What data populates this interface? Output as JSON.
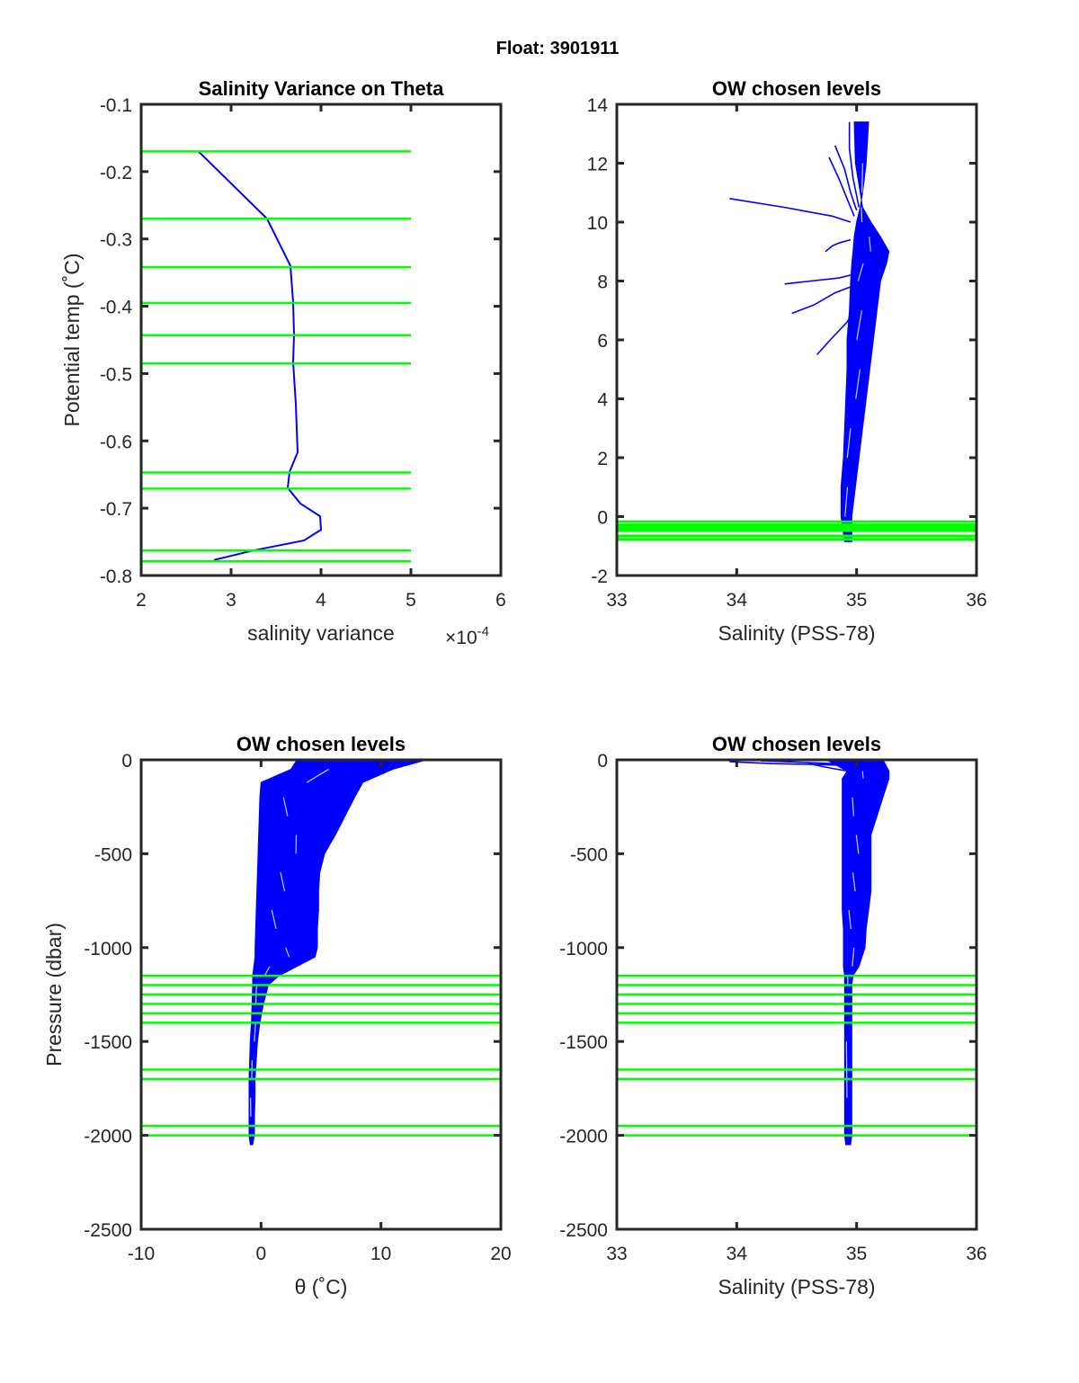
{
  "figure": {
    "suptitle": "Float: 3901911",
    "colors": {
      "profile": "#0000ff",
      "level": "#00ff00",
      "axis": "#262626"
    }
  },
  "chart_data": [
    {
      "id": "variance",
      "type": "line",
      "title": "Salinity Variance on Theta",
      "xlabel": "salinity variance",
      "xexponent": "×10",
      "xexponent_power": "-4",
      "ylabel": "Potential temp (˚C)",
      "xlim": [
        2,
        6
      ],
      "ylim": [
        -0.8,
        -0.1
      ],
      "xticks": [
        2,
        3,
        4,
        5,
        6
      ],
      "xtick_labels": [
        "2",
        "3",
        "4",
        "5",
        "6"
      ],
      "yticks": [
        -0.1,
        -0.2,
        -0.3,
        -0.4,
        -0.5,
        -0.6,
        -0.7,
        -0.8
      ],
      "ytick_labels": [
        "-0.1",
        "-0.2",
        "-0.3",
        "-0.4",
        "-0.5",
        "-0.6",
        "-0.7",
        "-0.8"
      ],
      "series": [
        {
          "name": "salinity variance",
          "x_scaled_1e-4": [
            2.63,
            3.4,
            3.66,
            3.69,
            3.7,
            3.69,
            3.72,
            3.74,
            3.65,
            3.63,
            3.77,
            3.99,
            4.0,
            3.81,
            3.24,
            2.81
          ],
          "y": [
            -0.169,
            -0.27,
            -0.34,
            -0.394,
            -0.442,
            -0.483,
            -0.546,
            -0.617,
            -0.646,
            -0.67,
            -0.693,
            -0.712,
            -0.732,
            -0.748,
            -0.763,
            -0.777
          ]
        }
      ],
      "chosen_levels": [
        -0.17,
        -0.27,
        -0.342,
        -0.395,
        -0.443,
        -0.485,
        -0.647,
        -0.671,
        -0.763,
        -0.779
      ],
      "level_xrange": [
        2,
        5
      ]
    },
    {
      "id": "theta-salinity",
      "type": "line",
      "title": "OW chosen levels",
      "xlabel": "Salinity (PSS-78)",
      "ylabel": "",
      "xlim": [
        33,
        36
      ],
      "ylim": [
        -2,
        14
      ],
      "xticks": [
        33,
        34,
        35,
        36
      ],
      "xtick_labels": [
        "33",
        "34",
        "35",
        "36"
      ],
      "yticks": [
        14,
        12,
        10,
        8,
        6,
        4,
        2,
        0,
        -2
      ],
      "ytick_labels": [
        "14",
        "12",
        "10",
        "8",
        "6",
        "4",
        "2",
        "0",
        "-2"
      ],
      "envelope": {
        "y": [
          -0.85,
          0,
          1,
          2,
          3,
          4,
          5,
          6,
          7,
          8,
          8.6,
          9.0,
          9.5,
          10,
          10.5,
          11,
          12,
          13.4
        ],
        "x_left": [
          34.9,
          34.87,
          34.87,
          34.89,
          34.9,
          34.91,
          34.92,
          34.92,
          34.94,
          34.95,
          34.96,
          34.97,
          34.98,
          35.0,
          35.03,
          35.05,
          35.08,
          35.1
        ],
        "x_right": [
          34.96,
          34.96,
          34.99,
          35.02,
          35.05,
          35.08,
          35.11,
          35.14,
          35.17,
          35.2,
          35.25,
          35.27,
          35.2,
          35.12,
          35.05,
          35.03,
          34.99,
          34.98
        ]
      },
      "outlier_traces": [
        {
          "x": [
            33.94,
            34.4,
            34.8,
            34.95
          ],
          "y": [
            10.8,
            10.5,
            10.2,
            10.0
          ]
        },
        {
          "x": [
            34.4,
            34.62,
            34.85,
            34.95
          ],
          "y": [
            7.9,
            8.0,
            8.1,
            8.2
          ]
        },
        {
          "x": [
            34.46,
            34.65,
            34.82,
            34.95
          ],
          "y": [
            6.9,
            7.2,
            7.6,
            7.8
          ]
        },
        {
          "x": [
            34.67,
            34.78,
            34.92,
            34.98
          ],
          "y": [
            5.5,
            6.0,
            6.6,
            7.0
          ]
        },
        {
          "x": [
            34.77,
            34.85,
            34.92,
            34.98
          ],
          "y": [
            12.2,
            11.5,
            10.8,
            10.2
          ]
        },
        {
          "x": [
            34.82,
            34.9,
            34.95,
            35.0
          ],
          "y": [
            12.6,
            11.8,
            11.0,
            10.4
          ]
        },
        {
          "x": [
            34.94,
            34.94,
            34.97,
            35.02
          ],
          "y": [
            13.4,
            12.5,
            11.5,
            10.5
          ]
        },
        {
          "x": [
            34.74,
            34.8,
            34.86,
            34.95
          ],
          "y": [
            9.0,
            9.2,
            9.3,
            9.4
          ]
        }
      ],
      "chosen_levels": [
        -0.17,
        -0.27,
        -0.342,
        -0.395,
        -0.443,
        -0.485,
        -0.647,
        -0.671,
        -0.763,
        -0.779
      ],
      "level_xrange": [
        33,
        36
      ]
    },
    {
      "id": "pressure-theta",
      "type": "line",
      "title": "OW chosen levels",
      "xlabel": "θ (˚C)",
      "ylabel": "Pressure (dbar)",
      "xlim": [
        -10,
        20
      ],
      "ylim": [
        -2500,
        0
      ],
      "xticks": [
        -10,
        0,
        10,
        20
      ],
      "xtick_labels": [
        "-10",
        "0",
        "10",
        "20"
      ],
      "yticks": [
        0,
        -500,
        -1000,
        -1500,
        -2000,
        -2500
      ],
      "ytick_labels": [
        "0",
        "-500",
        "-1000",
        "-1500",
        "-2000",
        "-2500"
      ],
      "envelope": {
        "y": [
          0,
          -50,
          -120,
          -200,
          -300,
          -400,
          -500,
          -600,
          -700,
          -800,
          -900,
          -1000,
          -1050,
          -1100,
          -1150,
          -1200,
          -1300,
          -1400,
          -1500,
          -1600,
          -1700,
          -1800,
          -1900,
          -2000,
          -2050
        ],
        "x_left": [
          3.0,
          2.5,
          0.0,
          -0.1,
          -0.15,
          -0.2,
          -0.25,
          -0.3,
          -0.35,
          -0.4,
          -0.45,
          -0.5,
          -0.5,
          -0.6,
          -0.7,
          -0.7,
          -0.75,
          -0.8,
          -0.9,
          -0.95,
          -1.0,
          -1.0,
          -1.0,
          -1.0,
          -0.9
        ],
        "x_right": [
          13.8,
          11.0,
          8.5,
          7.8,
          7.0,
          6.2,
          5.3,
          4.9,
          4.8,
          4.8,
          4.7,
          4.7,
          4.5,
          3.0,
          1.5,
          0.6,
          0.2,
          -0.1,
          -0.3,
          -0.4,
          -0.5,
          -0.5,
          -0.55,
          -0.55,
          -0.7
        ]
      },
      "chosen_levels": [
        -1150,
        -1200,
        -1250,
        -1300,
        -1350,
        -1400,
        -1650,
        -1700,
        -1950,
        -2000
      ],
      "level_xrange": [
        -10,
        20
      ]
    },
    {
      "id": "pressure-salinity",
      "type": "line",
      "title": "OW chosen levels",
      "xlabel": "Salinity (PSS-78)",
      "ylabel": "",
      "xlim": [
        33,
        36
      ],
      "ylim": [
        -2500,
        0
      ],
      "xticks": [
        33,
        34,
        35,
        36
      ],
      "xtick_labels": [
        "33",
        "34",
        "35",
        "36"
      ],
      "yticks": [
        0,
        -500,
        -1000,
        -1500,
        -2000,
        -2500
      ],
      "ytick_labels": [
        "0",
        "-500",
        "-1000",
        "-1500",
        "-2000",
        "-2500"
      ],
      "envelope": {
        "y": [
          0,
          -60,
          -100,
          -200,
          -300,
          -400,
          -500,
          -600,
          -700,
          -800,
          -900,
          -1000,
          -1100,
          -1150,
          -1200,
          -1500,
          -1800,
          -2000,
          -2050
        ],
        "x_left": [
          34.75,
          34.92,
          34.88,
          34.88,
          34.88,
          34.88,
          34.88,
          34.88,
          34.88,
          34.88,
          34.89,
          34.89,
          34.89,
          34.9,
          34.9,
          34.9,
          34.9,
          34.9,
          34.91
        ],
        "x_right": [
          35.22,
          35.27,
          35.27,
          35.22,
          35.17,
          35.12,
          35.12,
          35.12,
          35.12,
          35.1,
          35.08,
          35.07,
          35.02,
          34.97,
          34.96,
          34.96,
          34.96,
          34.96,
          34.95
        ]
      },
      "outlier_traces": [
        {
          "x": [
            33.94,
            34.3,
            34.7,
            34.92
          ],
          "y": [
            -10,
            -20,
            -25,
            -30
          ]
        },
        {
          "x": [
            34.2,
            34.5,
            34.8,
            34.93
          ],
          "y": [
            -5,
            -12,
            -20,
            -28
          ]
        },
        {
          "x": [
            34.6,
            34.75,
            34.88,
            34.94
          ],
          "y": [
            -20,
            -40,
            -55,
            -60
          ]
        }
      ],
      "chosen_levels": [
        -1150,
        -1200,
        -1250,
        -1300,
        -1350,
        -1400,
        -1650,
        -1700,
        -1950,
        -2000
      ],
      "level_xrange": [
        33,
        36
      ]
    }
  ]
}
